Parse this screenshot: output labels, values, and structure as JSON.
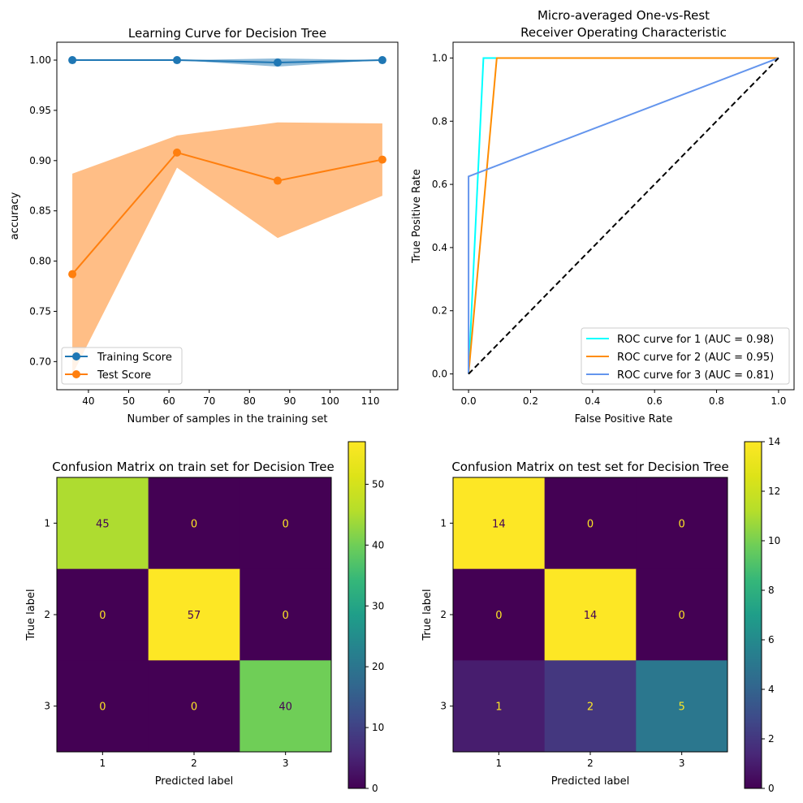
{
  "chart_data": [
    {
      "type": "line",
      "title": "Learning Curve for Decision Tree",
      "xlabel": "Number of samples in the training set",
      "ylabel": "accuracy",
      "xlim": [
        32.15,
        116.85
      ],
      "ylim": [
        0.672,
        1.0178
      ],
      "x_ticks": [
        40,
        50,
        60,
        70,
        80,
        90,
        100,
        110
      ],
      "x_tick_labels": [
        "40",
        "50",
        "60",
        "70",
        "80",
        "90",
        "100",
        "110"
      ],
      "y_ticks": [
        0.7,
        0.75,
        0.8,
        0.85,
        0.9,
        0.95,
        1.0
      ],
      "y_tick_labels": [
        "0.70",
        "0.75",
        "0.80",
        "0.85",
        "0.90",
        "0.95",
        "1.00"
      ],
      "x": [
        36,
        62,
        87,
        113
      ],
      "series": [
        {
          "name": "Training Score",
          "color": "#1f77b4",
          "values": [
            1.0,
            1.0,
            0.9976,
            1.0
          ],
          "band_lower": [
            1.0,
            1.0,
            0.9936,
            1.0
          ],
          "band_upper": [
            1.0,
            1.0,
            1.0016,
            1.0
          ]
        },
        {
          "name": "Test Score",
          "color": "#ff7f0e",
          "band_color": "#ffbe86",
          "values": [
            0.787,
            0.908,
            0.88,
            0.901
          ],
          "band_lower": [
            0.687,
            0.893,
            0.823,
            0.865
          ],
          "band_upper": [
            0.887,
            0.925,
            0.938,
            0.937
          ]
        }
      ],
      "legend": "lower-left"
    },
    {
      "type": "line",
      "title": "Micro-averaged One-vs-Rest",
      "subtitle": "Receiver Operating Characteristic",
      "xlabel": "False Positive Rate",
      "ylabel": "True Positive Rate",
      "xlim": [
        -0.05,
        1.05
      ],
      "ylim": [
        -0.05,
        1.05
      ],
      "x_ticks": [
        0.0,
        0.2,
        0.4,
        0.6,
        0.8,
        1.0
      ],
      "x_tick_labels": [
        "0.0",
        "0.2",
        "0.4",
        "0.6",
        "0.8",
        "1.0"
      ],
      "y_ticks": [
        0.0,
        0.2,
        0.4,
        0.6,
        0.8,
        1.0
      ],
      "y_tick_labels": [
        "0.0",
        "0.2",
        "0.4",
        "0.6",
        "0.8",
        "1.0"
      ],
      "series": [
        {
          "name": "ROC curve for 1 (AUC = 0.98)",
          "color": "#00ffff",
          "x": [
            0.0,
            0.048,
            1.0
          ],
          "y": [
            0.0,
            1.0,
            1.0
          ]
        },
        {
          "name": "ROC curve for 2 (AUC = 0.95)",
          "color": "#ff8c00",
          "x": [
            0.0,
            0.091,
            1.0
          ],
          "y": [
            0.0,
            1.0,
            1.0
          ]
        },
        {
          "name": "ROC curve for 3 (AUC = 0.81)",
          "color": "#6495ed",
          "x": [
            0.0,
            0.0,
            1.0
          ],
          "y": [
            0.0,
            0.625,
            1.0
          ]
        },
        {
          "name": "chance",
          "color": "#000000",
          "dashed": true,
          "x": [
            0.0,
            1.0
          ],
          "y": [
            0.0,
            1.0
          ]
        }
      ],
      "legend": "lower-right"
    },
    {
      "type": "heatmap",
      "title": "Confusion Matrix on train set for Decision Tree",
      "xlabel": "Predicted label",
      "ylabel": "True label",
      "labels": [
        "1",
        "2",
        "3"
      ],
      "matrix": [
        [
          45,
          0,
          0
        ],
        [
          0,
          57,
          0
        ],
        [
          0,
          0,
          40
        ]
      ],
      "vmin": 0,
      "vmax": 57,
      "colorbar_ticks": [
        0,
        10,
        20,
        30,
        40,
        50
      ],
      "colorbar_tick_labels": [
        "0",
        "10",
        "20",
        "30",
        "40",
        "50"
      ],
      "colormap": "viridis"
    },
    {
      "type": "heatmap",
      "title": "Confusion Matrix on test set for Decision Tree",
      "xlabel": "Predicted label",
      "ylabel": "True label",
      "labels": [
        "1",
        "2",
        "3"
      ],
      "matrix": [
        [
          14,
          0,
          0
        ],
        [
          0,
          14,
          0
        ],
        [
          1,
          2,
          5
        ]
      ],
      "vmin": 0,
      "vmax": 14,
      "colorbar_ticks": [
        0,
        2,
        4,
        6,
        8,
        10,
        12,
        14
      ],
      "colorbar_tick_labels": [
        "0",
        "2",
        "4",
        "6",
        "8",
        "10",
        "12",
        "14"
      ],
      "colormap": "viridis"
    }
  ]
}
